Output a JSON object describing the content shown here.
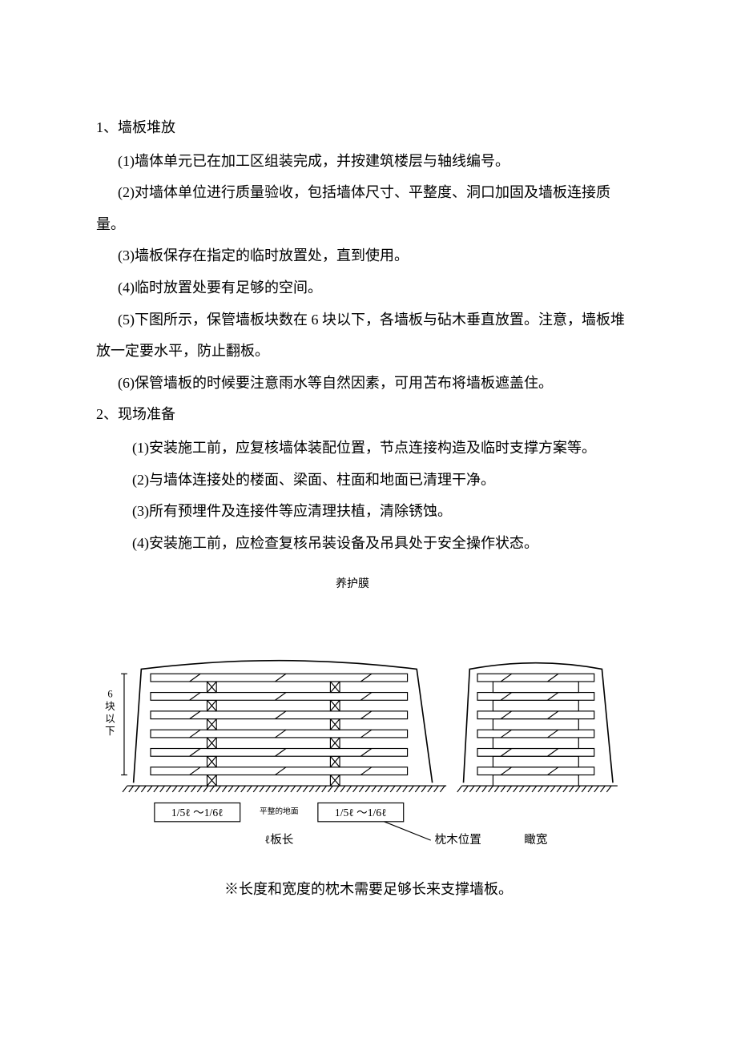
{
  "section1": {
    "heading": "1、墙板堆放",
    "items": [
      "(1)墙体单元已在加工区组装完成，并按建筑楼层与轴线编号。",
      "(2)对墙体单位进行质量验收，包括墙体尺寸、平整度、洞口加固及墙板连接质",
      "(3)墙板保存在指定的临时放置处，直到使用。",
      "(4)临时放置处要有足够的空间。",
      "(5)下图所示，保管墙板块数在 6 块以下，各墙板与砧木垂直放置。注意，墙板堆",
      "(6)保管墙板的时候要注意雨水等自然因素，可用苫布将墙板遮盖住。"
    ],
    "item2_cont": "量。",
    "item5_cont": "放一定要水平，防止翻板。"
  },
  "section2": {
    "heading": "2、现场准备",
    "items": [
      "(1)安装施工前，应复核墙体装配位置，节点连接构造及临时支撑方案等。",
      "(2)与墙体连接处的楼面、梁面、柱面和地面已清理干净。",
      "(3)所有预埋件及连接件等应清理扶植，清除锈蚀。",
      "(4)安装施工前，应检查复核吊装设备及吊具处于安全操作状态。"
    ]
  },
  "diagram": {
    "title": "养护膜",
    "left_label": "6块以下",
    "dim_left": "1/5ℓ ～1/6ℓ",
    "dim_right": "1/5ℓ ～1/6ℓ",
    "dim_center_top": "平整的地面",
    "q_label": "ℓ板长",
    "pillow_label": "枕木位置",
    "width_label": "瞰宽",
    "caption": "※长度和宽度的枕木需要足够长来支撑墙板。",
    "colors": {
      "stroke": "#000000",
      "fill": "#ffffff",
      "hatch": "#000000"
    },
    "stroke_width": 1.2,
    "panel_count": 6
  }
}
